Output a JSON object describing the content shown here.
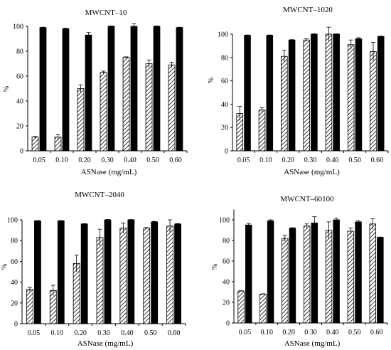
{
  "chart_data": [
    {
      "type": "bar",
      "title": "MWCNT–10",
      "xlabel": "ASNase (mg/mL)",
      "ylabel": "%",
      "ylim": [
        0,
        100
      ],
      "yticks": [
        0,
        20,
        40,
        60,
        80,
        100
      ],
      "grid": false,
      "categories": [
        "0.05",
        "0.10",
        "0.20",
        "0.30",
        "0.40",
        "0.50",
        "0.60"
      ],
      "series": [
        {
          "pattern": "hatched",
          "values": [
            11,
            11,
            50,
            63,
            75,
            70,
            69
          ],
          "errors": [
            0.5,
            2,
            3,
            1,
            0.5,
            3,
            2
          ]
        },
        {
          "pattern": "solid",
          "values": [
            99,
            98,
            93,
            100,
            100,
            100,
            99
          ],
          "errors": [
            0.3,
            0.5,
            2,
            0.3,
            2,
            0.3,
            0.3
          ]
        }
      ]
    },
    {
      "type": "bar",
      "title": "MWCNT–1020",
      "xlabel": "ASNase (mg/mL)",
      "ylabel": "%",
      "ylim": [
        0,
        100
      ],
      "yticks": [
        0,
        20,
        40,
        60,
        80,
        100
      ],
      "grid": false,
      "categories": [
        "0.05",
        "0.10",
        "0.20",
        "0.30",
        "0.40",
        "0.50",
        "0.60"
      ],
      "series": [
        {
          "pattern": "hatched",
          "values": [
            32,
            35,
            81,
            95,
            100,
            91,
            85
          ],
          "errors": [
            6,
            2,
            5,
            1,
            6,
            4,
            8
          ]
        },
        {
          "pattern": "solid",
          "values": [
            99,
            99,
            95,
            100,
            100,
            96,
            98
          ],
          "errors": [
            0.3,
            0.3,
            0.3,
            0.3,
            0.3,
            1,
            0.3
          ]
        }
      ]
    },
    {
      "type": "bar",
      "title": "MWCNT–2040",
      "xlabel": "ASNase (mg/mL)",
      "ylabel": "%",
      "ylim": [
        0,
        100
      ],
      "yticks": [
        0,
        20,
        40,
        60,
        80,
        100
      ],
      "grid": false,
      "categories": [
        "0.05",
        "0.10",
        "0.20",
        "0.30",
        "0.40",
        "0.50",
        "0.60"
      ],
      "series": [
        {
          "pattern": "hatched",
          "values": [
            33,
            32,
            58,
            83,
            92,
            92,
            94
          ],
          "errors": [
            2,
            5,
            8,
            8,
            5,
            0.5,
            6
          ]
        },
        {
          "pattern": "solid",
          "values": [
            99,
            99,
            96,
            100,
            100,
            98,
            96
          ],
          "errors": [
            0.3,
            0.3,
            0.3,
            0.3,
            0.3,
            0.5,
            0.3
          ]
        }
      ]
    },
    {
      "type": "bar",
      "title": "MWCNT–60100",
      "xlabel": "ASNase (mg/mL)",
      "ylabel": "%",
      "ylim": [
        0,
        110
      ],
      "yticks": [
        0,
        20,
        40,
        60,
        80,
        100
      ],
      "grid": false,
      "categories": [
        "0.05",
        "0.10",
        "0.20",
        "0.30",
        "0.40",
        "0.50",
        "0.60"
      ],
      "series": [
        {
          "pattern": "hatched",
          "values": [
            31,
            28,
            82,
            94,
            90,
            89,
            96
          ],
          "errors": [
            0.3,
            0.3,
            3,
            2,
            8,
            3,
            5
          ]
        },
        {
          "pattern": "solid",
          "values": [
            95,
            99,
            92,
            97,
            100,
            98,
            83
          ],
          "errors": [
            1.5,
            1,
            0.3,
            6,
            1.5,
            1,
            0.3
          ]
        }
      ]
    }
  ]
}
